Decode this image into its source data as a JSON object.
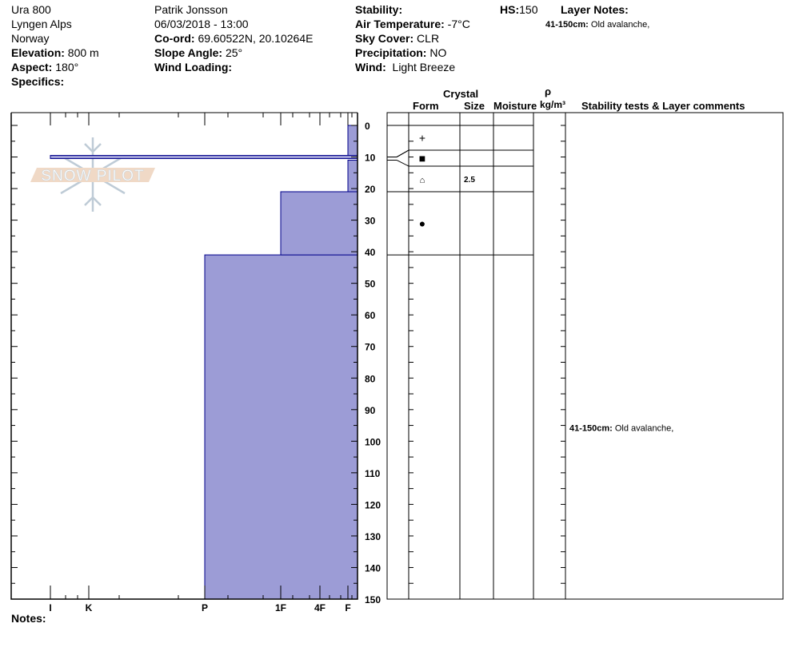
{
  "header": {
    "site": "Ura 800",
    "range": "Lyngen Alps",
    "country": "Norway",
    "elevation_label": "Elevation:",
    "elevation": "800 m",
    "aspect_label": "Aspect:",
    "aspect": "180°",
    "specifics_label": "Specifics:",
    "observer": "Patrik Jonsson",
    "datetime": "06/03/2018 - 13:00",
    "coord_label": "Co-ord:",
    "coord": "69.60522N, 20.10264E",
    "slope_label": "Slope Angle:",
    "slope": "25°",
    "wind_loading_label": "Wind Loading:",
    "stability_label": "Stability:",
    "air_temp_label": "Air Temperature:",
    "air_temp": "-7°C",
    "sky_label": "Sky Cover:",
    "sky": "CLR",
    "precip_label": "Precipitation:",
    "precip": "NO",
    "wind_label": "Wind:",
    "wind": "Light Breeze",
    "hs_label": "HS:",
    "hs": "150",
    "layer_notes_label": "Layer Notes:",
    "layer_note_range": "41-150cm:",
    "layer_note_text": "Old avalanche,"
  },
  "table_headers": {
    "crystal": "Crystal",
    "form": "Form",
    "size": "Size",
    "moisture": "Moisture",
    "rho": "ρ",
    "density_unit": "kg/m³",
    "comments": "Stability tests & Layer comments"
  },
  "notes_label": "Notes:",
  "logo_text": "SNOW PILOT",
  "chart_data": {
    "type": "bar",
    "depth_axis": {
      "min": 0,
      "max": 150,
      "ticks": [
        0,
        10,
        20,
        30,
        40,
        50,
        60,
        70,
        80,
        90,
        100,
        110,
        120,
        130,
        140,
        150
      ]
    },
    "hardness_axis": {
      "ticks": [
        "I",
        "K",
        "P",
        "1F",
        "4F",
        "F"
      ]
    },
    "layers": [
      {
        "top": 0,
        "bottom": 10,
        "hardness": "F",
        "form": "+",
        "size": "",
        "comment": ""
      },
      {
        "top": 10,
        "bottom": 11,
        "hardness": "I",
        "form": "■",
        "size": "",
        "comment": ""
      },
      {
        "top": 11,
        "bottom": 21,
        "hardness": "F",
        "form": "⌂",
        "size": "2.5",
        "comment": ""
      },
      {
        "top": 21,
        "bottom": 41,
        "hardness": "1F",
        "form": "●",
        "size": "",
        "comment": ""
      },
      {
        "top": 41,
        "bottom": 150,
        "hardness": "P",
        "form": "",
        "size": "",
        "comment_range": "41-150cm:",
        "comment": "Old avalanche,"
      }
    ],
    "colors": {
      "bar_fill": "#9c9cd6",
      "bar_stroke": "#00008b"
    }
  }
}
